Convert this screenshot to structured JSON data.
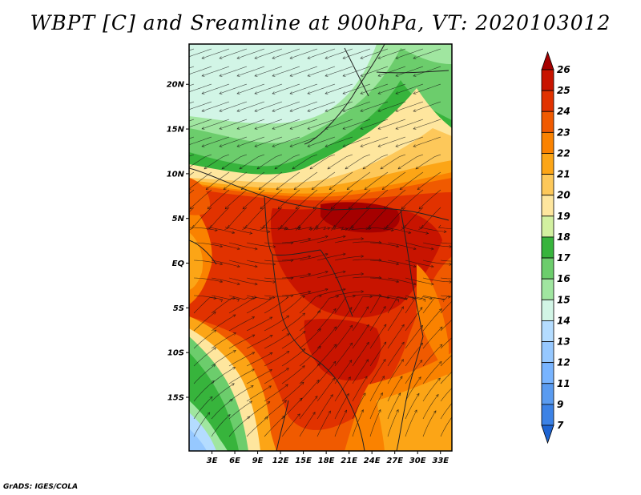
{
  "title": "WBPT [C] and Sreamline at 900hPa, VT: 2020103012",
  "credit": "GrADS: IGES/COLA",
  "map": {
    "lat_range": [
      -21,
      24.5
    ],
    "lon_range": [
      0,
      34.5
    ],
    "lat_ticks": [
      {
        "value": 20,
        "label": "20N"
      },
      {
        "value": 15,
        "label": "15N"
      },
      {
        "value": 10,
        "label": "10N"
      },
      {
        "value": 5,
        "label": "5N"
      },
      {
        "value": 0,
        "label": "EQ"
      },
      {
        "value": -5,
        "label": "5S"
      },
      {
        "value": -10,
        "label": "10S"
      },
      {
        "value": -15,
        "label": "15S"
      }
    ],
    "lon_ticks": [
      {
        "value": 3,
        "label": "3E"
      },
      {
        "value": 6,
        "label": "6E"
      },
      {
        "value": 9,
        "label": "9E"
      },
      {
        "value": 12,
        "label": "12E"
      },
      {
        "value": 15,
        "label": "15E"
      },
      {
        "value": 18,
        "label": "18E"
      },
      {
        "value": 21,
        "label": "21E"
      },
      {
        "value": 24,
        "label": "24E"
      },
      {
        "value": 27,
        "label": "27E"
      },
      {
        "value": 30,
        "label": "30E"
      },
      {
        "value": 33,
        "label": "33E"
      }
    ]
  },
  "colorbar": {
    "label_values": [
      "26",
      "25",
      "24",
      "23",
      "22",
      "21",
      "20",
      "19",
      "18",
      "17",
      "16",
      "15",
      "14",
      "13",
      "12",
      "11",
      "9",
      "7"
    ],
    "colors": [
      "#a50000",
      "#c81400",
      "#e13200",
      "#f05a00",
      "#fa8200",
      "#fca516",
      "#fdc85a",
      "#fee69e",
      "#d2f0a0",
      "#37b43c",
      "#6ccd6c",
      "#a0e6a0",
      "#d2f5e6",
      "#b4dcff",
      "#96c8ff",
      "#78b4ff",
      "#5a9bf0",
      "#3c82e6",
      "#1e64d2"
    ]
  },
  "field": {
    "regions": [
      {
        "name": "north-cool",
        "level": "15",
        "color": "#d2f5e6"
      },
      {
        "name": "north-green-band",
        "level": "16-17",
        "color": "#6ccd6c"
      },
      {
        "name": "sahel-yellow",
        "level": "19-20",
        "color": "#fee69e"
      },
      {
        "name": "central-hot",
        "level": "24-25",
        "color": "#e13200"
      },
      {
        "name": "southwest-green",
        "level": "16-17",
        "color": "#37b43c"
      },
      {
        "name": "southwest-blue",
        "level": "13-14",
        "color": "#96c8ff"
      },
      {
        "name": "southeast-orange",
        "level": "21-22",
        "color": "#fa8200"
      }
    ]
  }
}
